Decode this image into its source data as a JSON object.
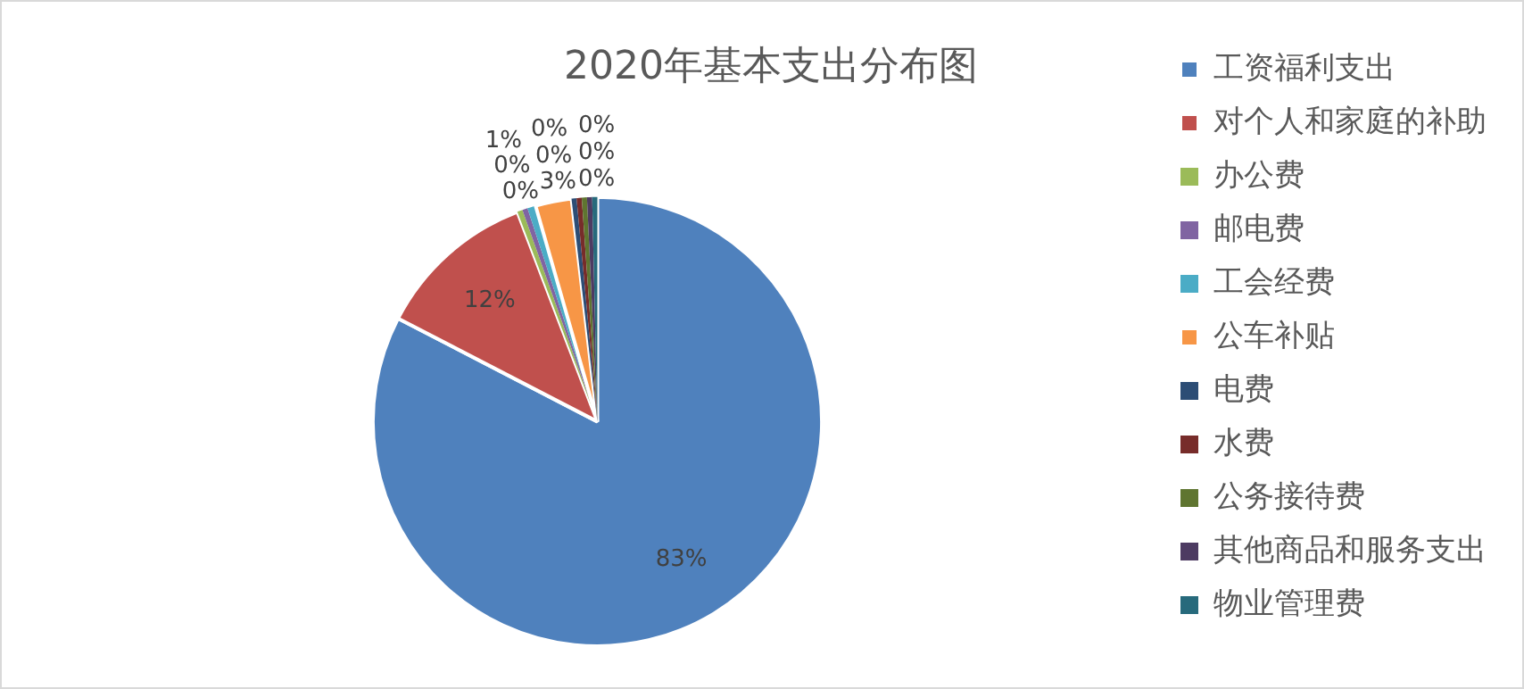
{
  "chart_data": {
    "type": "pie",
    "title": "2020年基本支出分布图",
    "categories": [
      "工资福利支出",
      "对个人和家庭的补助",
      "办公费",
      "邮电费",
      "工会经费",
      "公车补贴",
      "电费",
      "水费",
      "公务接待费",
      "其他商品和服务支出",
      "物业管理费"
    ],
    "values": [
      82.6,
      11.6,
      0.38,
      0.38,
      0.6,
      2.6,
      0.36,
      0.37,
      0.37,
      0.37,
      0.37
    ],
    "value_labels": [
      "83%",
      "12%",
      "0%",
      "0%",
      "1%",
      "3%",
      "0%",
      "0%",
      "0%",
      "0%",
      "0%"
    ],
    "colors": [
      "#4f81bd",
      "#c0504d",
      "#9bbb59",
      "#8064a2",
      "#4bacc6",
      "#f79646",
      "#2c4d75",
      "#772c2a",
      "#5f7530",
      "#4d3b62",
      "#276a7c"
    ],
    "legend": "right"
  }
}
